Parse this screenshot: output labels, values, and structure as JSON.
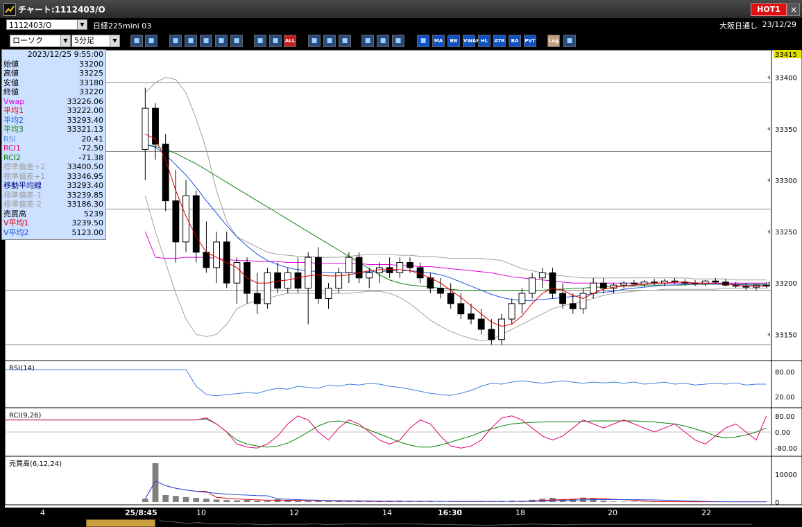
{
  "window": {
    "title": "チャート:1112403/O",
    "hot_label": "HOT1",
    "close_label": "×"
  },
  "symbol": {
    "code": "1112403/O",
    "name": "日経225mini 03",
    "market": "大阪日通し",
    "date": "23/12/29"
  },
  "toolbar": {
    "chart_type": "ローソク",
    "interval": "5分足",
    "buttons": [
      {
        "icon": "zoom-icon",
        "label": ""
      },
      {
        "icon": "crosshair-icon",
        "label": ""
      },
      {
        "icon": "candle-mark-icon",
        "label": ""
      },
      {
        "icon": "zoom-in-icon",
        "label": ""
      },
      {
        "icon": "chart-icon",
        "label": ""
      },
      {
        "icon": "order-icon",
        "label": ""
      },
      {
        "icon": "lock-icon",
        "label": ""
      },
      {
        "icon": "candle-left-icon",
        "label": ""
      },
      {
        "icon": "candle-right-icon",
        "label": ""
      },
      {
        "icon": "all-icon",
        "label": "ALL"
      },
      {
        "icon": "pen-icon",
        "label": ""
      },
      {
        "icon": "cursor-icon",
        "label": ""
      },
      {
        "icon": "arrow-icon",
        "label": ""
      },
      {
        "icon": "gear-icon",
        "label": ""
      },
      {
        "icon": "tool-icon",
        "label": ""
      },
      {
        "icon": "palette-icon",
        "label": ""
      },
      {
        "icon": "grid-icon",
        "label": ""
      },
      {
        "icon": "ma-icon",
        "label": "MA"
      },
      {
        "icon": "bb-icon",
        "label": "BB"
      },
      {
        "icon": "vwap-icon",
        "label": "VWAP"
      },
      {
        "icon": "hl-icon",
        "label": "HL"
      },
      {
        "icon": "atr-icon",
        "label": "ATR"
      },
      {
        "icon": "ba-icon",
        "label": "BA"
      },
      {
        "icon": "pvt-icon",
        "label": "PVT"
      },
      {
        "icon": "log-icon",
        "label": "Log"
      },
      {
        "icon": "export-icon",
        "label": ""
      }
    ]
  },
  "info": {
    "timestamp": "2023/12/25  9:55:00",
    "rows": [
      {
        "label": "始値",
        "value": "33200",
        "color": "#000000"
      },
      {
        "label": "高値",
        "value": "33225",
        "color": "#000000"
      },
      {
        "label": "安値",
        "value": "33180",
        "color": "#000000"
      },
      {
        "label": "終値",
        "value": "33220",
        "color": "#000000"
      },
      {
        "label": "Vwap",
        "value": "33226.06",
        "color": "#e000e0"
      },
      {
        "label": "平均1",
        "value": "33222.00",
        "color": "#e00000"
      },
      {
        "label": "平均2",
        "value": "33293.40",
        "color": "#2050e0"
      },
      {
        "label": "平均3",
        "value": "33321.13",
        "color": "#108010"
      },
      {
        "label": "RSI",
        "value": "20.41",
        "color": "#5090e0"
      },
      {
        "label": "RCI1",
        "value": "-72.50",
        "color": "#e00070"
      },
      {
        "label": "RCI2",
        "value": "-71.38",
        "color": "#008000"
      },
      {
        "label": "標準偏差+2",
        "value": "33400.50",
        "color": "#a0a0a0"
      },
      {
        "label": "標準偏差+1",
        "value": "33346.95",
        "color": "#a0a0a0"
      },
      {
        "label": "移動平均線",
        "value": "33293.40",
        "color": "#000080"
      },
      {
        "label": "標準偏差-1",
        "value": "33239.85",
        "color": "#a0a0a0"
      },
      {
        "label": "標準偏差-2",
        "value": "33186.30",
        "color": "#a0a0a0"
      },
      {
        "label": "売買高",
        "value": "5239",
        "color": "#000000"
      },
      {
        "label": "V平均1",
        "value": "3239.50",
        "color": "#e00000"
      },
      {
        "label": "V平均2",
        "value": "5123.00",
        "color": "#2050e0"
      }
    ]
  },
  "price_axis": {
    "current": "33415",
    "ticks": [
      "33400",
      "33350",
      "33300",
      "33250",
      "33200",
      "33150"
    ]
  },
  "rsi_panel": {
    "label": "RSI(14)",
    "ticks": [
      "80.00",
      "20.00"
    ]
  },
  "rci_panel": {
    "label": "RCI(9,26)",
    "ticks": [
      "80.00",
      "0.00",
      "-80.00"
    ]
  },
  "vol_panel": {
    "label": "売買高(6,12,24)",
    "ticks": [
      "10000",
      "0"
    ]
  },
  "time_axis": {
    "labels": [
      "4",
      "25/8:45",
      "10",
      "12",
      "14",
      "16:30",
      "18",
      "20",
      "22"
    ]
  },
  "colors": {
    "candle_up": "#ffffff",
    "candle_down": "#000000",
    "vwap": "#e000e0",
    "ma1": "#e00000",
    "ma2": "#2050e0",
    "ma3": "#108010",
    "bband": "#a0a0a0",
    "rsi": "#4080e0",
    "rci1": "#e00070",
    "rci2": "#008000",
    "volume": "#808080"
  },
  "chart_data": {
    "type": "candlestick",
    "ylim": [
      33130,
      33420
    ],
    "candles": [
      [
        33330,
        33390,
        33300,
        33370
      ],
      [
        33370,
        33375,
        33320,
        33335
      ],
      [
        33335,
        33345,
        33270,
        33280
      ],
      [
        33280,
        33310,
        33220,
        33240
      ],
      [
        33240,
        33300,
        33230,
        33285
      ],
      [
        33285,
        33290,
        33220,
        33230
      ],
      [
        33230,
        33260,
        33210,
        33215
      ],
      [
        33215,
        33250,
        33200,
        33240
      ],
      [
        33240,
        33250,
        33195,
        33200
      ],
      [
        33200,
        33225,
        33180,
        33220
      ],
      [
        33220,
        33225,
        33180,
        33190
      ],
      [
        33190,
        33210,
        33170,
        33180
      ],
      [
        33180,
        33215,
        33175,
        33210
      ],
      [
        33210,
        33220,
        33190,
        33195
      ],
      [
        33195,
        33215,
        33190,
        33210
      ],
      [
        33210,
        33225,
        33190,
        33195
      ],
      [
        33195,
        33230,
        33160,
        33225
      ],
      [
        33225,
        33235,
        33180,
        33185
      ],
      [
        33185,
        33200,
        33175,
        33195
      ],
      [
        33195,
        33215,
        33190,
        33210
      ],
      [
        33210,
        33230,
        33200,
        33225
      ],
      [
        33225,
        33230,
        33200,
        33205
      ],
      [
        33205,
        33215,
        33195,
        33210
      ],
      [
        33210,
        33220,
        33200,
        33215
      ],
      [
        33215,
        33225,
        33205,
        33210
      ],
      [
        33210,
        33225,
        33205,
        33220
      ],
      [
        33220,
        33225,
        33210,
        33215
      ],
      [
        33215,
        33220,
        33200,
        33205
      ],
      [
        33205,
        33210,
        33190,
        33195
      ],
      [
        33195,
        33205,
        33185,
        33190
      ],
      [
        33190,
        33200,
        33175,
        33180
      ],
      [
        33180,
        33190,
        33165,
        33170
      ],
      [
        33170,
        33180,
        33160,
        33165
      ],
      [
        33165,
        33175,
        33150,
        33155
      ],
      [
        33155,
        33165,
        33140,
        33145
      ],
      [
        33145,
        33170,
        33140,
        33165
      ],
      [
        33165,
        33185,
        33160,
        33180
      ],
      [
        33180,
        33195,
        33170,
        33190
      ],
      [
        33190,
        33210,
        33185,
        33205
      ],
      [
        33205,
        33215,
        33195,
        33210
      ],
      [
        33210,
        33215,
        33185,
        33190
      ],
      [
        33190,
        33200,
        33175,
        33180
      ],
      [
        33180,
        33190,
        33170,
        33175
      ],
      [
        33175,
        33195,
        33170,
        33190
      ],
      [
        33190,
        33205,
        33185,
        33200
      ],
      [
        33200,
        33205,
        33190,
        33195
      ],
      [
        33195,
        33200,
        33190,
        33198
      ],
      [
        33198,
        33202,
        33195,
        33200
      ],
      [
        33200,
        33203,
        33197,
        33199
      ],
      [
        33199,
        33203,
        33196,
        33201
      ],
      [
        33201,
        33204,
        33198,
        33200
      ],
      [
        33200,
        33204,
        33197,
        33202
      ],
      [
        33202,
        33205,
        33199,
        33201
      ],
      [
        33201,
        33204,
        33198,
        33200
      ],
      [
        33200,
        33203,
        33197,
        33199
      ],
      [
        33199,
        33203,
        33197,
        33202
      ],
      [
        33202,
        33205,
        33199,
        33201
      ],
      [
        33201,
        33204,
        33197,
        33198
      ],
      [
        33198,
        33201,
        33195,
        33197
      ],
      [
        33197,
        33200,
        33193,
        33196
      ],
      [
        33196,
        33199,
        33193,
        33198
      ],
      [
        33198,
        33201,
        33195,
        33197
      ]
    ],
    "vwap": [
      33250,
      33225,
      33224,
      33224,
      33225,
      33225,
      33225,
      33224,
      33223,
      33222,
      33222,
      33221,
      33221,
      33221,
      33220,
      33220,
      33220,
      33219,
      33219,
      33219,
      33219,
      33219,
      33218,
      33218,
      33218,
      33217,
      33217,
      33216,
      33216,
      33215,
      33214,
      33213,
      33212,
      33211,
      33210,
      33208,
      33206,
      33205,
      33204,
      33203,
      33202,
      33201,
      33200,
      33200,
      33200,
      33200,
      33200,
      33200,
      33200,
      33200,
      33200,
      33200,
      33200,
      33200,
      33200,
      33200,
      33200,
      33200,
      33200,
      33200,
      33200,
      33200
    ],
    "ma1": [
      33345,
      33340,
      33320,
      33290,
      33265,
      33245,
      33230,
      33225,
      33220,
      33215,
      33205,
      33200,
      33200,
      33202,
      33203,
      33205,
      33207,
      33208,
      33207,
      33207,
      33208,
      33210,
      33212,
      33213,
      33213,
      33213,
      33212,
      33209,
      33205,
      33200,
      33193,
      33186,
      33178,
      33170,
      33162,
      33158,
      33160,
      33168,
      33180,
      33190,
      33195,
      33193,
      33188,
      33185,
      33190,
      33194,
      33196,
      33197,
      33198,
      33199,
      33200,
      33200,
      33201,
      33201,
      33200,
      33200,
      33200,
      33199,
      33198,
      33197,
      33197,
      33197
    ],
    "ma2": [
      33335,
      33332,
      33325,
      33315,
      33305,
      33293,
      33280,
      33268,
      33256,
      33245,
      33236,
      33228,
      33222,
      33218,
      33215,
      33213,
      33212,
      33211,
      33210,
      33210,
      33210,
      33210,
      33211,
      33211,
      33212,
      33212,
      33212,
      33211,
      33210,
      33208,
      33205,
      33201,
      33197,
      33193,
      33189,
      33186,
      33184,
      33183,
      33183,
      33184,
      33185,
      33186,
      33187,
      33188,
      33190,
      33191,
      33192,
      33194,
      33195,
      33196,
      33197,
      33198,
      33198,
      33199,
      33199,
      33199,
      33199,
      33199,
      33199,
      33198,
      33198,
      33198
    ],
    "ma3": [
      33335,
      33333,
      33330,
      33326,
      33321,
      33316,
      33310,
      33304,
      33298,
      33292,
      33286,
      33280,
      33274,
      33268,
      33262,
      33256,
      33250,
      33244,
      33238,
      33232,
      33226,
      33220,
      33214,
      33208,
      33203,
      33200,
      33198,
      33197,
      33196,
      33195,
      33194,
      33193,
      33193,
      33193,
      33193,
      33193,
      33193,
      33193,
      33193,
      33193,
      33194,
      33194,
      33195,
      33195,
      33196,
      33196,
      33197,
      33197,
      33197,
      33198,
      33198,
      33198,
      33198,
      33198,
      33199,
      33199,
      33199,
      33199,
      33199,
      33199,
      33199,
      33199
    ],
    "bb_upper": [
      33385,
      33395,
      33400,
      33398,
      33385,
      33360,
      33330,
      33290,
      33260,
      33245,
      33240,
      33235,
      33230,
      33228,
      33227,
      33226,
      33226,
      33225,
      33225,
      33225,
      33226,
      33227,
      33228,
      33228,
      33228,
      33227,
      33227,
      33226,
      33226,
      33225,
      33224,
      33224,
      33224,
      33224,
      33223,
      33222,
      33218,
      33214,
      33212,
      33210,
      33208,
      33207,
      33206,
      33205,
      33205,
      33205,
      33205,
      33205,
      33205,
      33205,
      33205,
      33205,
      33205,
      33205,
      33204,
      33204,
      33204,
      33204,
      33203,
      33203,
      33203,
      33203
    ],
    "bb_lower": [
      33285,
      33250,
      33220,
      33190,
      33165,
      33150,
      33148,
      33150,
      33160,
      33175,
      33180,
      33183,
      33185,
      33188,
      33190,
      33190,
      33190,
      33190,
      33190,
      33190,
      33190,
      33191,
      33192,
      33192,
      33190,
      33186,
      33180,
      33172,
      33164,
      33158,
      33153,
      33149,
      33146,
      33144,
      33145,
      33150,
      33155,
      33160,
      33165,
      33170,
      33175,
      33178,
      33180,
      33182,
      33185,
      33188,
      33190,
      33191,
      33192,
      33193,
      33193,
      33194,
      33194,
      33194,
      33194,
      33194,
      33194,
      33195,
      33195,
      33195,
      33195,
      33195
    ],
    "hlines": [
      33395,
      33328,
      33272,
      33193,
      33140
    ],
    "rsi": [
      85,
      85,
      85,
      85,
      85,
      45,
      25,
      22,
      25,
      27,
      30,
      28,
      35,
      40,
      38,
      45,
      42,
      40,
      48,
      45,
      50,
      48,
      52,
      50,
      45,
      42,
      38,
      33,
      28,
      25,
      23,
      28,
      35,
      45,
      52,
      50,
      55,
      58,
      55,
      52,
      55,
      58,
      55,
      52,
      55,
      53,
      55,
      52,
      55,
      50,
      52,
      55,
      50,
      52,
      48,
      50,
      52,
      50,
      53,
      48,
      50,
      50
    ],
    "rci1": [
      60,
      60,
      60,
      60,
      60,
      60,
      70,
      40,
      0,
      -60,
      -75,
      -80,
      -60,
      -20,
      40,
      80,
      60,
      0,
      -40,
      20,
      60,
      40,
      0,
      -40,
      -60,
      -40,
      20,
      60,
      40,
      -20,
      -70,
      -80,
      -70,
      -40,
      20,
      70,
      80,
      60,
      20,
      -20,
      -40,
      -20,
      20,
      60,
      40,
      20,
      40,
      60,
      40,
      20,
      0,
      20,
      40,
      0,
      -40,
      -60,
      -20,
      20,
      40,
      0,
      -40,
      80
    ],
    "rci2": [
      60,
      60,
      60,
      60,
      60,
      60,
      65,
      40,
      0,
      -40,
      -60,
      -70,
      -75,
      -70,
      -55,
      -30,
      0,
      30,
      50,
      55,
      45,
      30,
      10,
      -10,
      -30,
      -50,
      -65,
      -75,
      -75,
      -65,
      -50,
      -35,
      -20,
      0,
      15,
      30,
      40,
      45,
      48,
      50,
      50,
      50,
      50,
      52,
      55,
      55,
      55,
      55,
      55,
      52,
      50,
      45,
      40,
      30,
      15,
      0,
      -20,
      -30,
      -25,
      -15,
      0,
      20
    ],
    "volume": [
      1200,
      14000,
      2500,
      2200,
      1800,
      1500,
      1200,
      900,
      700,
      600,
      800,
      500,
      400,
      1000,
      500,
      400,
      300,
      400,
      300,
      300,
      200,
      300,
      200,
      200,
      300,
      500,
      200,
      200,
      200,
      100,
      200,
      100,
      200,
      300,
      200,
      400,
      500,
      300,
      800,
      1200,
      1500,
      1000,
      1200,
      1600,
      1400,
      500,
      200,
      150,
      150,
      100,
      100,
      100,
      100,
      100,
      100,
      100,
      100,
      100,
      100,
      100,
      100,
      100
    ]
  }
}
